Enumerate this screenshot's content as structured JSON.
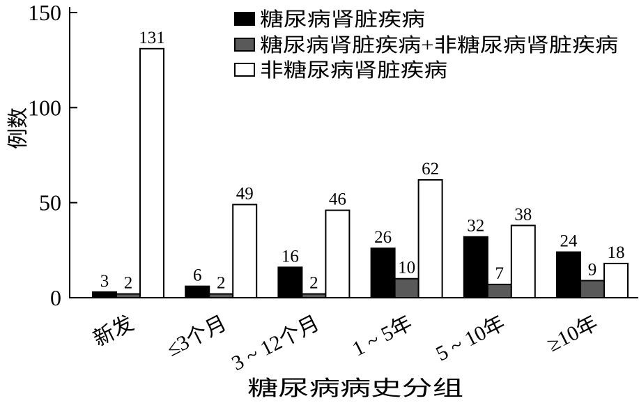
{
  "chart_data": {
    "type": "bar",
    "categories": [
      "新发",
      "≤3个月",
      "3 ~ 12个月",
      "1 ~ 5年",
      "5 ~ 10年",
      "≥10年"
    ],
    "series": [
      {
        "name": "糖尿病肾脏疾病",
        "values": [
          3,
          6,
          16,
          26,
          32,
          24
        ],
        "color": "#000000"
      },
      {
        "name": "糖尿病肾脏疾病+非糖尿病肾脏疾病",
        "values": [
          2,
          2,
          2,
          10,
          7,
          9
        ],
        "color": "#595959"
      },
      {
        "name": "非糖尿病肾脏疾病",
        "values": [
          131,
          49,
          46,
          62,
          38,
          18
        ],
        "color": "#ffffff"
      }
    ],
    "xlabel": "糖尿病病史分组",
    "ylabel": "例数",
    "ylim": [
      0,
      150
    ],
    "yticks": [
      0,
      50,
      100,
      150
    ],
    "grid": false,
    "legend": "top-right"
  }
}
